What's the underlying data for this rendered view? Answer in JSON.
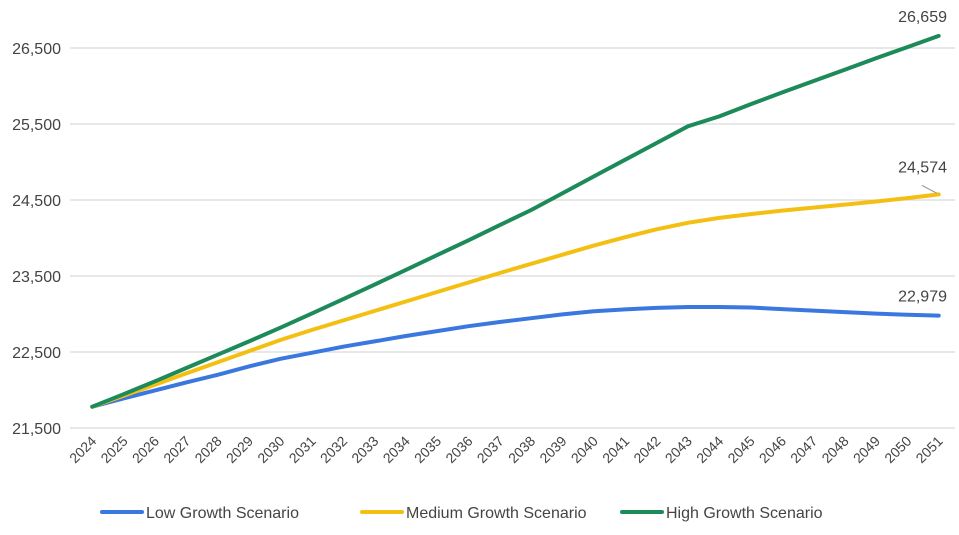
{
  "chart_data": {
    "type": "line",
    "title": "",
    "xlabel": "",
    "ylabel": "",
    "x": [
      2024,
      2025,
      2026,
      2027,
      2028,
      2029,
      2030,
      2031,
      2032,
      2033,
      2034,
      2035,
      2036,
      2037,
      2038,
      2039,
      2040,
      2041,
      2042,
      2043,
      2044,
      2045,
      2046,
      2047,
      2048,
      2049,
      2050,
      2051
    ],
    "ylim": [
      21500,
      26900
    ],
    "yticks": [
      21500,
      22500,
      23500,
      24500,
      25500,
      26500
    ],
    "ytick_labels": [
      "21,500",
      "22,500",
      "23,500",
      "24,500",
      "25,500",
      "26,500"
    ],
    "grid": "horizontal",
    "legend_position": "bottom",
    "series": [
      {
        "name": "Low Growth Scenario",
        "color": "#3a78e0",
        "values": [
          21780,
          21890,
          21995,
          22100,
          22200,
          22310,
          22410,
          22490,
          22570,
          22640,
          22710,
          22775,
          22840,
          22895,
          22945,
          22995,
          23035,
          23060,
          23080,
          23092,
          23092,
          23085,
          23065,
          23045,
          23025,
          23005,
          22990,
          22979
        ],
        "end_label": "22,979"
      },
      {
        "name": "Medium Growth Scenario",
        "color": "#f4bf13",
        "values": [
          21780,
          21925,
          22070,
          22218,
          22365,
          22512,
          22658,
          22790,
          22915,
          23040,
          23165,
          23290,
          23415,
          23540,
          23660,
          23780,
          23900,
          24010,
          24115,
          24200,
          24265,
          24315,
          24360,
          24400,
          24440,
          24480,
          24525,
          24574
        ],
        "end_label": "24,574"
      },
      {
        "name": "High Growth Scenario",
        "color": "#1d8a5a",
        "values": [
          21780,
          21945,
          22115,
          22290,
          22465,
          22640,
          22820,
          23005,
          23195,
          23385,
          23580,
          23775,
          23970,
          24170,
          24368,
          24590,
          24810,
          25030,
          25250,
          25470,
          25600,
          25760,
          25915,
          26065,
          26215,
          26365,
          26512,
          26659
        ],
        "end_label": "26,659"
      }
    ]
  }
}
